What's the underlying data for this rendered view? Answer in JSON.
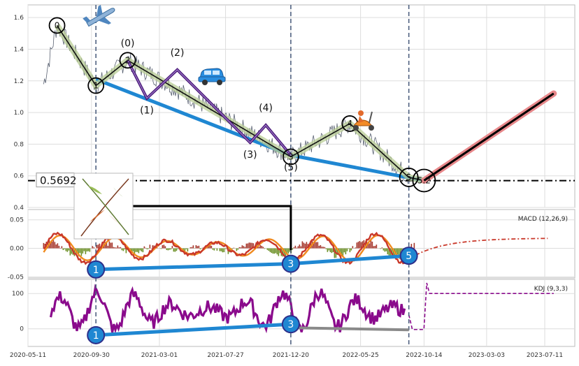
{
  "chart_data": {
    "type": "line",
    "x_ticks": [
      "2020-05-11",
      "2020-09-30",
      "2021-03-01",
      "2021-07-27",
      "2021-12-20",
      "2022-05-25",
      "2022-10-14",
      "2023-03-03",
      "2023-07-11"
    ],
    "vlines": [
      "2020-10-10",
      "2021-12-20",
      "2022-09-10"
    ],
    "price_panel": {
      "yticks": [
        "1.6",
        "1.4",
        "1.2",
        "1.0",
        "0.8",
        "0.6",
        "0.4"
      ],
      "ylim": [
        0.4,
        1.68
      ],
      "hline_value": 0.5692,
      "hline_label": "0.5692",
      "zigzag": [
        {
          "date": "2020-07-15",
          "value": 1.55,
          "label": "0"
        },
        {
          "date": "2020-10-10",
          "value": 1.17,
          "label": "1"
        },
        {
          "date": "2020-12-20",
          "value": 1.33,
          "label": "2"
        },
        {
          "date": "2021-12-20",
          "value": 0.72,
          "label": "3"
        },
        {
          "date": "2022-05-01",
          "value": 0.93,
          "label": "4"
        },
        {
          "date": "2022-09-10",
          "value": 0.59,
          "label": "5"
        },
        {
          "date": "2022-10-14",
          "value": 0.57,
          "label": "5.2"
        }
      ],
      "sub_wave": [
        {
          "date": "2020-12-20",
          "value": 1.33,
          "label": "(0)"
        },
        {
          "date": "2021-02-01",
          "value": 1.09,
          "label": "(1)"
        },
        {
          "date": "2021-04-10",
          "value": 1.27,
          "label": "(2)"
        },
        {
          "date": "2021-09-20",
          "value": 0.81,
          "label": "(3)"
        },
        {
          "date": "2021-10-25",
          "value": 0.92,
          "label": "(4)"
        },
        {
          "date": "2021-12-20",
          "value": 0.73,
          "label": "(5)"
        }
      ],
      "trend_line": [
        {
          "date": "2020-10-10",
          "value": 1.21
        },
        {
          "date": "2021-12-20",
          "value": 0.73
        },
        {
          "date": "2022-10-14",
          "value": 0.57
        }
      ],
      "projection": [
        {
          "date": "2022-10-14",
          "value": 0.57
        },
        {
          "date": "2023-07-31",
          "value": 1.12
        }
      ]
    },
    "macd_panel": {
      "title": "MACD (12,26,9)",
      "yticks": [
        "0.05",
        "0.00",
        "-0.05"
      ],
      "ylim": [
        -0.052,
        0.068
      ],
      "marks": [
        {
          "date": "2020-10-10",
          "value": -0.037,
          "label": "1"
        },
        {
          "date": "2021-12-20",
          "value": -0.027,
          "label": "3"
        },
        {
          "date": "2022-09-10",
          "value": -0.013,
          "label": "5"
        }
      ]
    },
    "kdj_panel": {
      "title": "KDJ (9,3,3)",
      "yticks": [
        "100",
        "0"
      ],
      "ylim": [
        -50,
        140
      ],
      "marks": [
        {
          "date": "2020-10-10",
          "value": -18,
          "label": "1"
        },
        {
          "date": "2021-12-20",
          "value": 13,
          "label": "3"
        }
      ],
      "gray_line": [
        {
          "date": "2021-12-20",
          "value": 3
        },
        {
          "date": "2022-09-10",
          "value": -3
        }
      ]
    },
    "icons": [
      "airplane-icon",
      "car-icon",
      "scooter-icon",
      "plant-image"
    ]
  }
}
